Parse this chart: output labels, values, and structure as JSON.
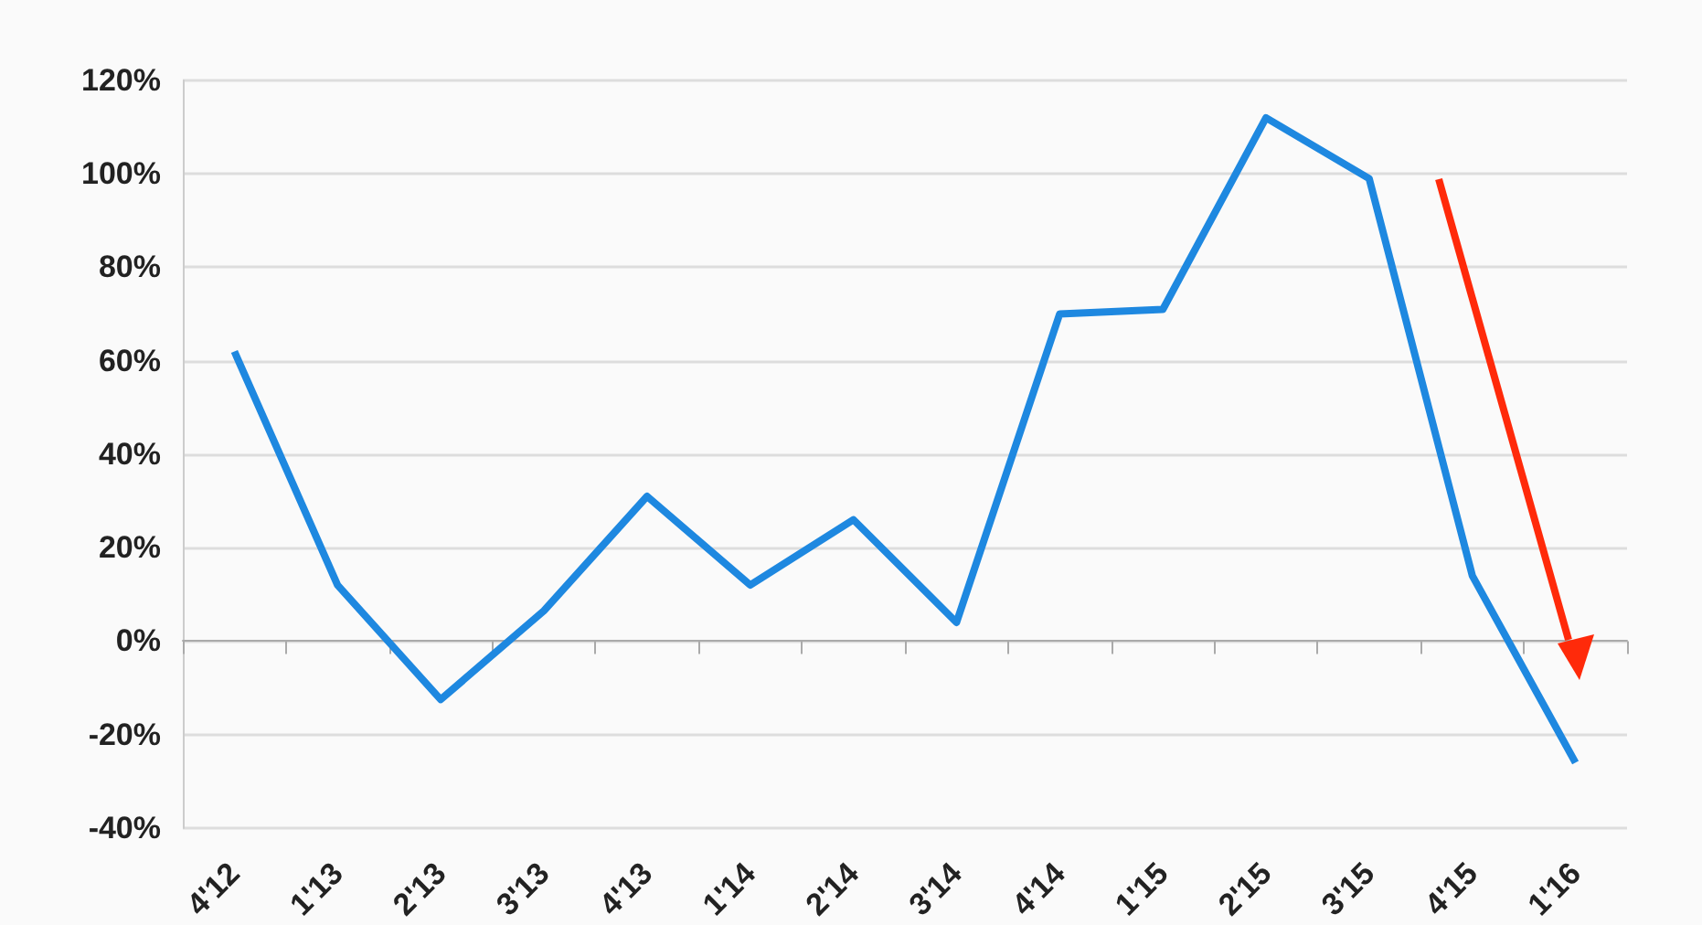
{
  "chart_data": {
    "type": "line",
    "categories": [
      "4'12",
      "1'13",
      "2'13",
      "3'13",
      "4'13",
      "1'14",
      "2'14",
      "3'14",
      "4'14",
      "1'15",
      "2'15",
      "3'15",
      "4'15",
      "1'16"
    ],
    "series": [
      {
        "color": "#1e88e0",
        "values": [
          62,
          12,
          -12.5,
          6.5,
          31,
          12,
          26,
          4,
          70,
          71,
          112,
          99,
          14,
          -26
        ]
      }
    ],
    "ylim": [
      -40,
      120
    ],
    "yticks": [
      {
        "value": -40,
        "label": "-40%"
      },
      {
        "value": -20,
        "label": "-20%"
      },
      {
        "value": 0,
        "label": "0%"
      },
      {
        "value": 20,
        "label": "20%"
      },
      {
        "value": 40,
        "label": "40%"
      },
      {
        "value": 60,
        "label": "60%"
      },
      {
        "value": 80,
        "label": "80%"
      },
      {
        "value": 100,
        "label": "100%"
      },
      {
        "value": 120,
        "label": "120%"
      }
    ],
    "grid": "y",
    "marker": "none",
    "line_style": "solid"
  }
}
